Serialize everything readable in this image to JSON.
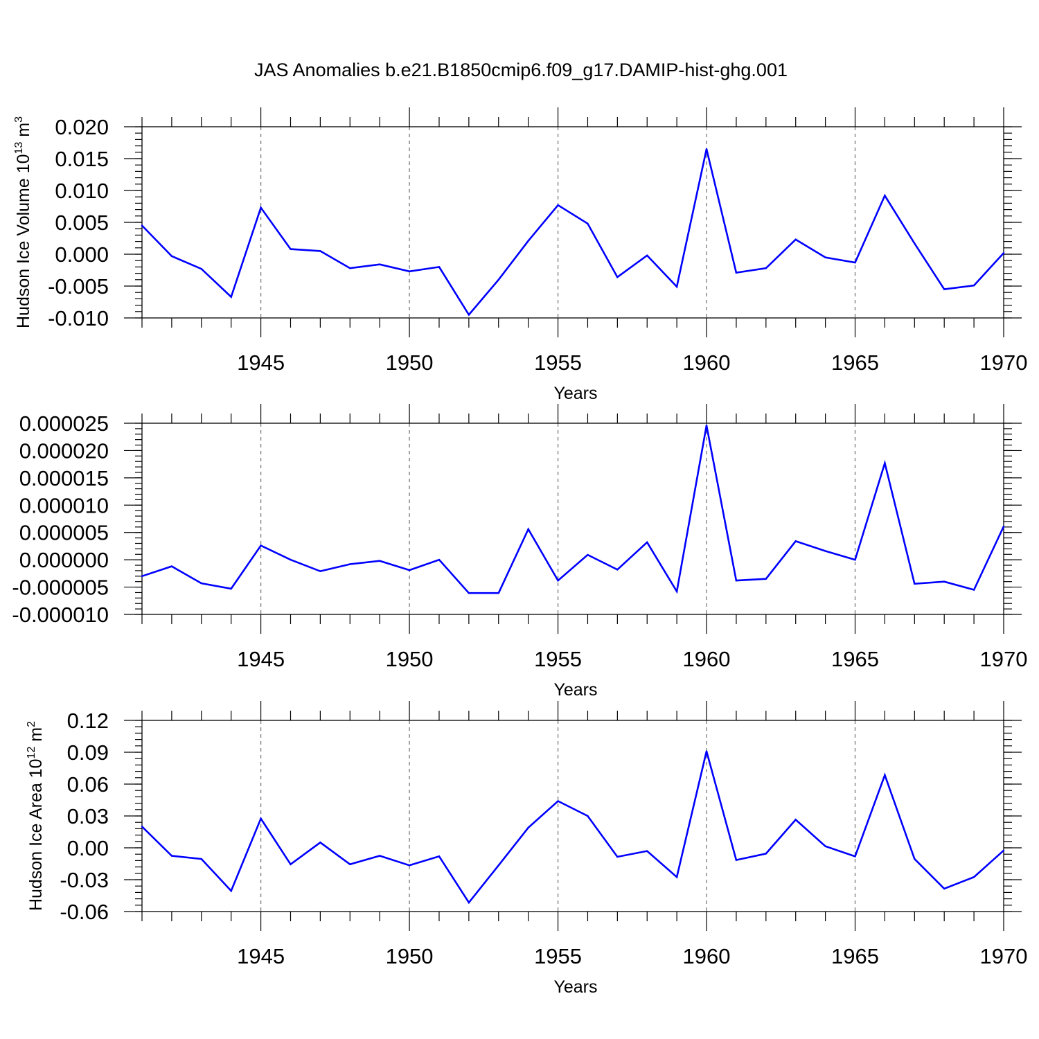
{
  "chart_data": {
    "title": "JAS Anomalies b.e21.B1850cmip6.f09_g17.DAMIP-hist-ghg.001",
    "series_color": "#0000ff",
    "panels": [
      {
        "type": "line",
        "ylabel_main": "Hudson Ice Volume 10",
        "ylabel_exp": "13",
        "ylabel_unit": " m",
        "ylabel_unit_exp": "3",
        "xlabel": "Years",
        "xlim": [
          1941,
          1970
        ],
        "ylim": [
          -0.01,
          0.02
        ],
        "yticks": [
          -0.01,
          -0.005,
          0.0,
          0.005,
          0.01,
          0.015,
          0.02
        ],
        "ytick_labels": [
          "-0.010",
          "-0.005",
          "0.000",
          "0.005",
          "0.010",
          "0.015",
          "0.020"
        ],
        "yminor_step": 0.001,
        "xticks": [
          1945,
          1950,
          1955,
          1960,
          1965,
          1970
        ],
        "xtick_labels": [
          "1945",
          "1950",
          "1955",
          "1960",
          "1965",
          "1970"
        ],
        "x": [
          1941,
          1942,
          1943,
          1944,
          1945,
          1946,
          1947,
          1948,
          1949,
          1950,
          1951,
          1952,
          1953,
          1954,
          1955,
          1956,
          1957,
          1958,
          1959,
          1960,
          1961,
          1962,
          1963,
          1964,
          1965,
          1966,
          1967,
          1968,
          1969,
          1970
        ],
        "values": [
          0.0045,
          -0.0003,
          -0.0023,
          -0.0067,
          0.0073,
          0.0008,
          0.0005,
          -0.0022,
          -0.0016,
          -0.0027,
          -0.002,
          -0.0095,
          -0.004,
          0.0021,
          0.0077,
          0.0048,
          -0.0036,
          -0.0002,
          -0.0051,
          0.0165,
          -0.0029,
          -0.0022,
          0.0023,
          -0.0005,
          -0.0013,
          0.0092,
          0.0017,
          -0.0055,
          -0.0049,
          0.0002
        ]
      },
      {
        "type": "line",
        "ylabel_main": "",
        "xlabel": "Years",
        "xlim": [
          1941,
          1970
        ],
        "ylim": [
          -1e-05,
          2.5e-05
        ],
        "yticks": [
          -1e-05,
          -5e-06,
          0.0,
          5e-06,
          1e-05,
          1.5e-05,
          2e-05,
          2.5e-05
        ],
        "ytick_labels": [
          "-0.000010",
          "-0.000005",
          "0.000000",
          "0.000005",
          "0.000010",
          "0.000015",
          "0.000020",
          "0.000025"
        ],
        "yminor_step": 1e-06,
        "xticks": [
          1945,
          1950,
          1955,
          1960,
          1965,
          1970
        ],
        "xtick_labels": [
          "1945",
          "1950",
          "1955",
          "1960",
          "1965",
          "1970"
        ],
        "x": [
          1941,
          1942,
          1943,
          1944,
          1945,
          1946,
          1947,
          1948,
          1949,
          1950,
          1951,
          1952,
          1953,
          1954,
          1955,
          1956,
          1957,
          1958,
          1959,
          1960,
          1961,
          1962,
          1963,
          1964,
          1965,
          1966,
          1967,
          1968,
          1969,
          1970
        ],
        "values": [
          -3e-06,
          -1.2e-06,
          -4.3e-06,
          -5.3e-06,
          2.6e-06,
          0.0,
          -2.1e-06,
          -8e-07,
          -2e-07,
          -1.9e-06,
          0.0,
          -6.1e-06,
          -6.1e-06,
          5.6e-06,
          -3.8e-06,
          9e-07,
          -1.8e-06,
          3.2e-06,
          -5.8e-06,
          2.46e-05,
          -3.8e-06,
          -3.5e-06,
          3.4e-06,
          1.6e-06,
          0.0,
          1.77e-05,
          -4.4e-06,
          -4e-06,
          -5.5e-06,
          6.1e-06
        ]
      },
      {
        "type": "line",
        "ylabel_main": "Hudson Ice Area 10",
        "ylabel_exp": "12",
        "ylabel_unit": " m",
        "ylabel_unit_exp": "2",
        "xlabel": "Years",
        "xlim": [
          1941,
          1970
        ],
        "ylim": [
          -0.06,
          0.12
        ],
        "yticks": [
          -0.06,
          -0.03,
          0.0,
          0.03,
          0.06,
          0.09,
          0.12
        ],
        "ytick_labels": [
          "-0.06",
          "-0.03",
          "0.00",
          "0.03",
          "0.06",
          "0.09",
          "0.12"
        ],
        "yminor_step": 0.006,
        "xticks": [
          1945,
          1950,
          1955,
          1960,
          1965,
          1970
        ],
        "xtick_labels": [
          "1945",
          "1950",
          "1955",
          "1960",
          "1965",
          "1970"
        ],
        "x": [
          1941,
          1942,
          1943,
          1944,
          1945,
          1946,
          1947,
          1948,
          1949,
          1950,
          1951,
          1952,
          1953,
          1954,
          1955,
          1956,
          1957,
          1958,
          1959,
          1960,
          1961,
          1962,
          1963,
          1964,
          1965,
          1966,
          1967,
          1968,
          1969,
          1970
        ],
        "values": [
          0.02,
          -0.0075,
          -0.0105,
          -0.0405,
          0.0275,
          -0.0155,
          0.005,
          -0.0155,
          -0.0075,
          -0.0165,
          -0.008,
          -0.0515,
          -0.0165,
          0.019,
          0.044,
          0.03,
          -0.0085,
          -0.003,
          -0.0275,
          0.091,
          -0.0115,
          -0.0055,
          0.0265,
          0.0015,
          -0.008,
          0.0685,
          -0.0105,
          -0.0385,
          -0.0275,
          -0.0025
        ]
      }
    ]
  }
}
